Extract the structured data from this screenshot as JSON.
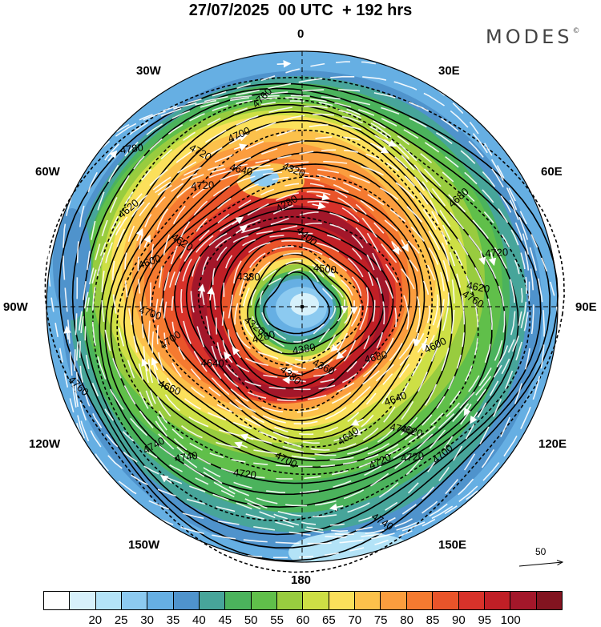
{
  "header": {
    "title": "27/07/2025  00 UTC  + 192 hrs",
    "brand": "MODES",
    "brand_mark": "©"
  },
  "longitude_labels": {
    "lon_0": "0",
    "lon_30e": "30E",
    "lon_60e": "60E",
    "lon_90e": "90E",
    "lon_120e": "120E",
    "lon_150e": "150E",
    "lon_180": "180",
    "lon_150w": "150W",
    "lon_120w": "120W",
    "lon_90w": "90W",
    "lon_60w": "60W",
    "lon_30w": "30W"
  },
  "contour_labels": [
    "4760",
    "4780",
    "4720",
    "4700",
    "4640",
    "4620",
    "4720",
    "4620",
    "4600",
    "4700",
    "4700",
    "4640",
    "4380",
    "4680",
    "4660",
    "4740",
    "4720",
    "4760",
    "4740",
    "4700",
    "4720",
    "4740",
    "4700",
    "4720",
    "4760",
    "4640",
    "4620",
    "4640",
    "4380",
    "4320",
    "4280",
    "4320",
    "4280",
    "4500",
    "4400",
    "4380",
    "4360",
    "4600",
    "4620",
    "4680",
    "4720",
    "4740"
  ],
  "reference_vector": {
    "label": "50"
  },
  "colorbar": {
    "colors": [
      "#ffffff",
      "#d7f1fb",
      "#b3e3f7",
      "#8ccaf0",
      "#66afe3",
      "#4f93cc",
      "#47a59a",
      "#4bb35c",
      "#60bf4a",
      "#98cc3f",
      "#cddf45",
      "#fbe05b",
      "#fcc14b",
      "#fb9d3e",
      "#f57a30",
      "#e9542a",
      "#d8322a",
      "#c01f26",
      "#a3172a",
      "#821420"
    ],
    "tick_labels": [
      "20",
      "25",
      "30",
      "35",
      "40",
      "45",
      "50",
      "55",
      "60",
      "65",
      "70",
      "75",
      "80",
      "85",
      "90",
      "95",
      "100"
    ]
  },
  "map_data": {
    "projection": "north-polar-stereographic",
    "field": "wind speed (shaded), geopotential height (contours), streamlines",
    "jet_core_color": "#a3172a",
    "pole_color": "#8ccaf0"
  }
}
